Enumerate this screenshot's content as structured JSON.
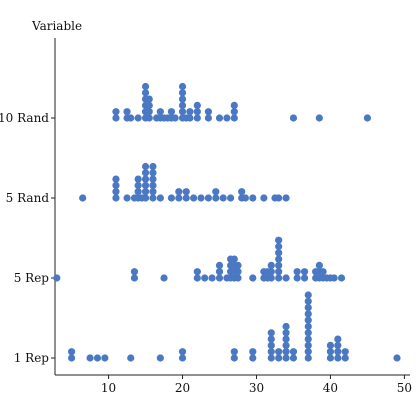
{
  "chart_data": {
    "type": "scatter",
    "subtype": "dot-plot",
    "title": "",
    "xlabel": "",
    "ylabel": "Variable",
    "xlim": [
      2,
      50
    ],
    "xticks": [
      10,
      20,
      30,
      40,
      50
    ],
    "categories": [
      "1 Rep",
      "5 Rep",
      "5 Rand",
      "10 Rand"
    ],
    "grid": false,
    "legend": "none",
    "color": "#4a78c2",
    "series": [
      {
        "category": "1 Rep",
        "values": [
          5,
          5,
          7.5,
          8.5,
          9.5,
          13,
          17,
          20,
          20,
          27,
          27,
          29.5,
          29.5,
          32,
          32,
          32,
          32,
          32,
          33,
          33,
          34,
          34,
          34,
          34,
          34,
          34,
          35,
          35,
          37,
          37,
          37,
          37,
          37,
          37,
          37,
          37,
          37,
          37,
          37,
          40,
          40,
          40,
          41,
          41,
          41,
          41,
          42,
          42,
          49
        ]
      },
      {
        "category": "5 Rep",
        "values": [
          3,
          13.5,
          13.5,
          17.5,
          22,
          22,
          23,
          24,
          25,
          25,
          25,
          26,
          26.5,
          26.5,
          26.5,
          26.5,
          27,
          27,
          27,
          27,
          27.5,
          27.5,
          27.5,
          29.5,
          31,
          31,
          31.5,
          31.5,
          32,
          32,
          32,
          33,
          33,
          33,
          33,
          33,
          33,
          33,
          34,
          35.5,
          35.5,
          36.5,
          36.5,
          38,
          38,
          38.5,
          38.5,
          38.5,
          39,
          39,
          39.5,
          40,
          40.5,
          41.5
        ]
      },
      {
        "category": "5 Rand",
        "values": [
          6.5,
          11,
          11,
          11,
          11,
          12.5,
          13.5,
          14,
          14,
          14,
          14,
          14.5,
          15,
          15,
          15,
          15,
          15,
          15,
          16,
          16,
          16,
          16,
          16,
          16,
          17,
          18.5,
          19.5,
          19.5,
          20.5,
          20.5,
          21.5,
          22.5,
          23.5,
          24.5,
          24.5,
          25.5,
          26.5,
          28,
          28,
          28.5,
          29.5,
          31,
          32.5,
          33,
          34
        ]
      },
      {
        "category": "10 Rand",
        "values": [
          11,
          11,
          12.5,
          12.5,
          13,
          14,
          15,
          15,
          15,
          15,
          15,
          15,
          15.5,
          15.5,
          15.5,
          15.5,
          16.5,
          17,
          17,
          17.5,
          18,
          18.5,
          18.5,
          19,
          20,
          20,
          20,
          20,
          20,
          20,
          20.5,
          21,
          21,
          22,
          22,
          22,
          23.5,
          23.5,
          25,
          26,
          27,
          27,
          27,
          35,
          38.5,
          45
        ]
      }
    ]
  }
}
